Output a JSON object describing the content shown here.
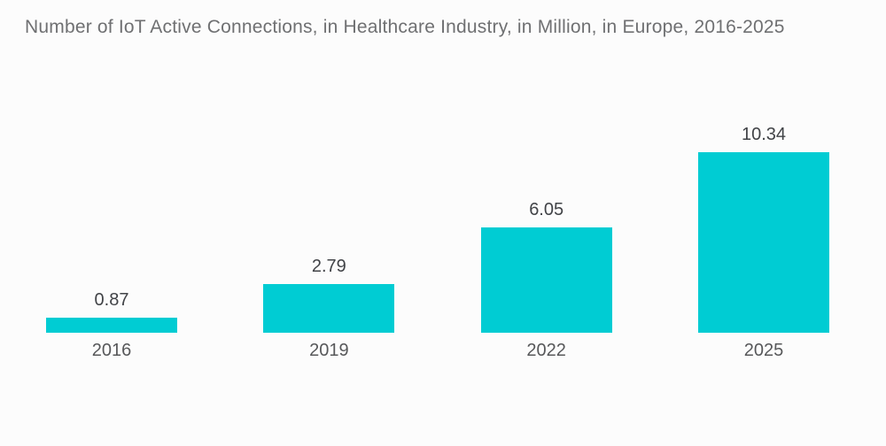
{
  "title": "Number of IoT Active Connections, in Healthcare Industry, in Million, in Europe, 2016-2025",
  "chart_data": {
    "type": "bar",
    "categories": [
      "2016",
      "2019",
      "2022",
      "2025"
    ],
    "values": [
      0.87,
      2.79,
      6.05,
      10.34
    ],
    "value_labels": [
      "0.87",
      "2.79",
      "6.05",
      "10.34"
    ],
    "title": "Number of IoT Active Connections, in Healthcare Industry, in Million, in Europe, 2016-2025",
    "xlabel": "",
    "ylabel": "",
    "ylim": [
      0,
      11
    ],
    "grid": false,
    "legend": "none",
    "bar_color": "#00CCD3",
    "background_color": "#fcfcfc",
    "title_color": "#6f7072",
    "value_label_color": "#414347",
    "axis_label_color": "#57585a"
  }
}
